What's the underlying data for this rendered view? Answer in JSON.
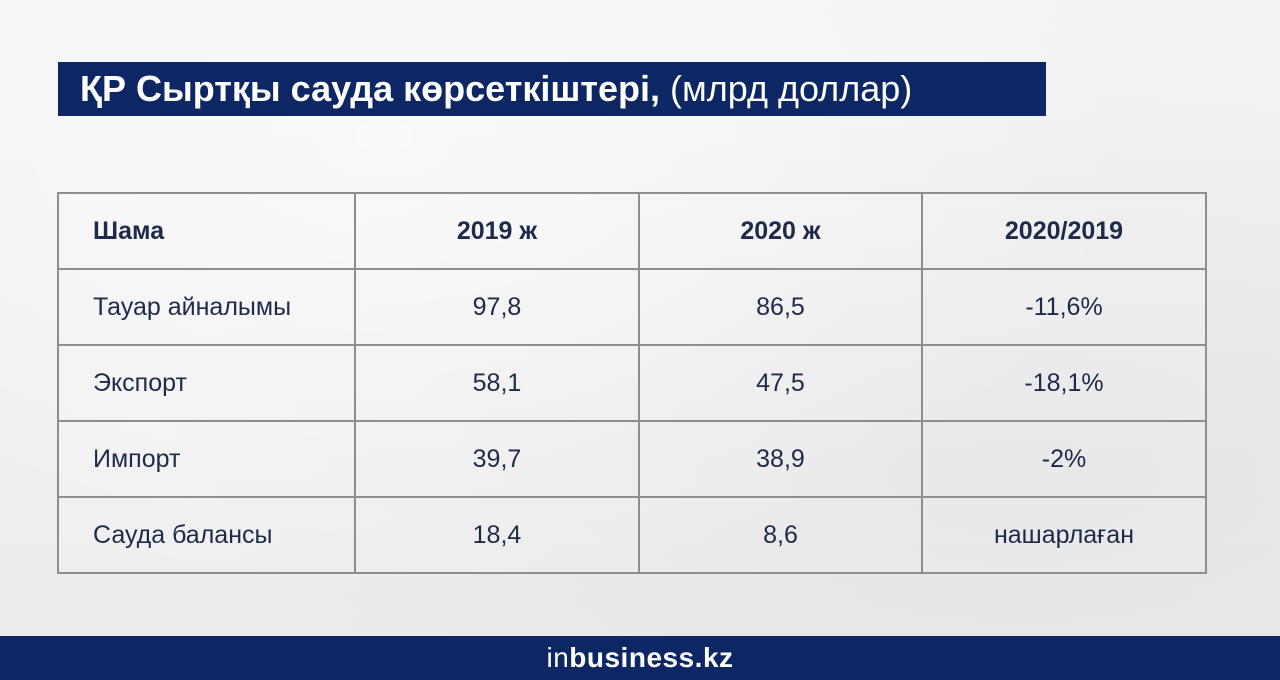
{
  "title": {
    "bold": "ҚР Сыртқы сауда көрсеткіштері,",
    "normal": "(млрд доллар)"
  },
  "table": {
    "headers": [
      "Шама",
      "2019 ж",
      "2020 ж",
      "2020/2019"
    ],
    "rows": [
      [
        "Тауар айналымы",
        "97,8",
        "86,5",
        "-11,6%"
      ],
      [
        "Экспорт",
        "58,1",
        "47,5",
        "-18,1%"
      ],
      [
        "Импорт",
        "39,7",
        "38,9",
        "-2%"
      ],
      [
        "Сауда балансы",
        "18,4",
        "8,6",
        "нашарлаған"
      ]
    ]
  },
  "footer": {
    "logo_prefix": "in",
    "logo_main": "business.kz"
  },
  "colors": {
    "navy": "#0c2764",
    "text": "#1e2a4a",
    "border": "#8e8e8e"
  }
}
